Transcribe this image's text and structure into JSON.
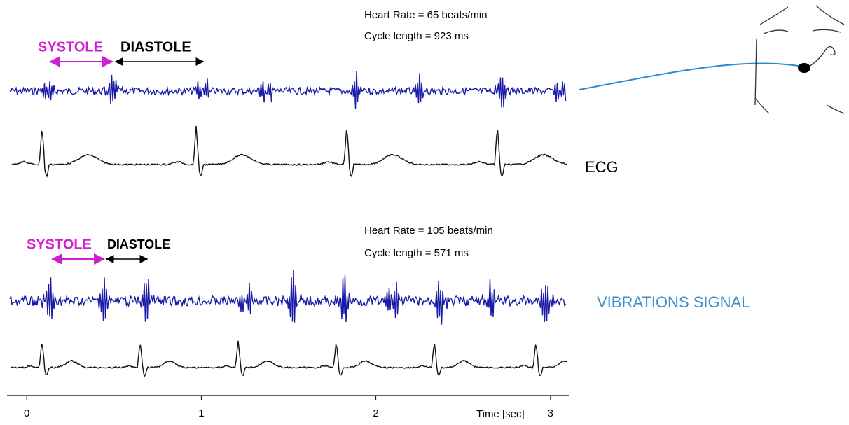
{
  "top_panel": {
    "heart_rate": "Heart Rate = 65 beats/min",
    "cycle_length": "Cycle length = 923 ms",
    "systole": "SYSTOLE",
    "diastole": "DIASTOLE"
  },
  "bottom_panel": {
    "heart_rate": "Heart Rate = 105 beats/min",
    "cycle_length": "Cycle length = 571 ms",
    "systole": "SYSTOLE",
    "diastole": "DIASTOLE"
  },
  "labels": {
    "ecg": "ECG",
    "vibrations": "VIBRATIONS SIGNAL"
  },
  "time_axis": {
    "label": "Time [sec]",
    "xlim": [
      -0.113,
      3.105
    ],
    "xticks": [
      0,
      1,
      2,
      3
    ]
  }
}
